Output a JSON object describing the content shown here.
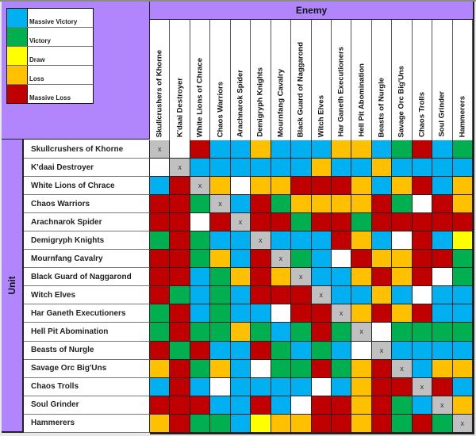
{
  "legend": {
    "items": [
      {
        "key": "B",
        "label": "Massive Victory",
        "color": "#00b0f0"
      },
      {
        "key": "G",
        "label": "Victory",
        "color": "#00b050"
      },
      {
        "key": "Y",
        "label": "Draw",
        "color": "#ffff00"
      },
      {
        "key": "O",
        "label": "Loss",
        "color": "#ffc000"
      },
      {
        "key": "R",
        "label": "Massive Loss",
        "color": "#c00000"
      }
    ],
    "self_color": "#c0c0c0",
    "empty_color": "#ffffff",
    "self_mark": "x"
  },
  "header": {
    "enemy_label": "Enemy",
    "unit_label": "Unit"
  },
  "columns": [
    "Skullcrushers of Khorne",
    "K'daai Destroyer",
    "White Lions of Chrace",
    "Chaos Warriors",
    "Arachnarok Spider",
    "Demigryph Knights",
    "Mournfang Cavalry",
    "Black Guard of Naggarond",
    "Witch Elves",
    "Har Ganeth Executioners",
    "Hell Pit Abomination",
    "Beasts of Nurgle",
    "Savage Orc Big'Uns",
    "Chaos Trolls",
    "Soul Grinder",
    "Hammerers"
  ],
  "rows": [
    {
      "label": "Skullcrushers of Khorne",
      "cells": [
        "X",
        "W",
        "R",
        "B",
        "B",
        "O",
        "B",
        "B",
        "B",
        "O",
        "O",
        "B",
        "G",
        "R",
        "B",
        "G"
      ]
    },
    {
      "label": "K'daai Destroyer",
      "cells": [
        "W",
        "X",
        "B",
        "B",
        "B",
        "B",
        "B",
        "B",
        "O",
        "B",
        "B",
        "O",
        "B",
        "B",
        "B",
        "B"
      ]
    },
    {
      "label": "White Lions of Chrace",
      "cells": [
        "B",
        "R",
        "X",
        "O",
        "W",
        "O",
        "O",
        "R",
        "R",
        "R",
        "O",
        "B",
        "O",
        "R",
        "B",
        "O"
      ]
    },
    {
      "label": "Chaos Warriors",
      "cells": [
        "R",
        "R",
        "G",
        "X",
        "B",
        "R",
        "G",
        "O",
        "O",
        "O",
        "O",
        "R",
        "G",
        "W",
        "R",
        "O"
      ]
    },
    {
      "label": "Arachnarok Spider",
      "cells": [
        "R",
        "R",
        "W",
        "R",
        "X",
        "R",
        "R",
        "G",
        "R",
        "R",
        "G",
        "R",
        "R",
        "R",
        "R",
        "R"
      ]
    },
    {
      "label": "Demigryph Knights",
      "cells": [
        "G",
        "R",
        "G",
        "B",
        "B",
        "X",
        "B",
        "B",
        "B",
        "R",
        "O",
        "B",
        "W",
        "R",
        "B",
        "Y"
      ]
    },
    {
      "label": "Mournfang Cavalry",
      "cells": [
        "R",
        "R",
        "G",
        "O",
        "B",
        "R",
        "X",
        "G",
        "B",
        "W",
        "R",
        "O",
        "O",
        "R",
        "R",
        "G"
      ]
    },
    {
      "label": "Black Guard of Naggarond",
      "cells": [
        "R",
        "R",
        "B",
        "G",
        "O",
        "R",
        "O",
        "X",
        "B",
        "B",
        "O",
        "R",
        "O",
        "R",
        "W",
        "G"
      ]
    },
    {
      "label": "Witch Elves",
      "cells": [
        "R",
        "G",
        "B",
        "G",
        "B",
        "R",
        "R",
        "R",
        "X",
        "B",
        "B",
        "O",
        "B",
        "W",
        "B",
        "B"
      ]
    },
    {
      "label": "Har Ganeth Executioners",
      "cells": [
        "G",
        "R",
        "B",
        "G",
        "B",
        "B",
        "W",
        "R",
        "R",
        "X",
        "O",
        "R",
        "O",
        "R",
        "B",
        "B"
      ]
    },
    {
      "label": "Hell Pit Abomination",
      "cells": [
        "G",
        "R",
        "G",
        "G",
        "O",
        "G",
        "B",
        "G",
        "R",
        "G",
        "X",
        "W",
        "G",
        "G",
        "G",
        "G"
      ]
    },
    {
      "label": "Beasts of Nurgle",
      "cells": [
        "R",
        "G",
        "R",
        "B",
        "B",
        "R",
        "G",
        "B",
        "G",
        "B",
        "W",
        "X",
        "B",
        "B",
        "B",
        "B"
      ]
    },
    {
      "label": "Savage Orc Big'Uns",
      "cells": [
        "O",
        "R",
        "G",
        "O",
        "B",
        "W",
        "G",
        "G",
        "R",
        "G",
        "O",
        "R",
        "X",
        "B",
        "O",
        "O"
      ]
    },
    {
      "label": "Chaos Trolls",
      "cells": [
        "B",
        "R",
        "B",
        "W",
        "B",
        "B",
        "B",
        "B",
        "W",
        "B",
        "O",
        "R",
        "R",
        "X",
        "R",
        "B"
      ]
    },
    {
      "label": "Soul Grinder",
      "cells": [
        "R",
        "R",
        "R",
        "B",
        "B",
        "R",
        "B",
        "W",
        "R",
        "R",
        "O",
        "R",
        "G",
        "B",
        "X",
        "O"
      ]
    },
    {
      "label": "Hammerers",
      "cells": [
        "O",
        "R",
        "G",
        "G",
        "B",
        "Y",
        "O",
        "O",
        "R",
        "R",
        "O",
        "R",
        "G",
        "R",
        "G",
        "X"
      ]
    }
  ],
  "chart_data": {
    "type": "heatmap",
    "title": "Unit vs Enemy matchup",
    "xlabel": "Enemy",
    "ylabel": "Unit",
    "legend": [
      "Massive Victory",
      "Victory",
      "Draw",
      "Loss",
      "Massive Loss"
    ],
    "encoding": {
      "B": "Massive Victory",
      "G": "Victory",
      "Y": "Draw",
      "O": "Loss",
      "R": "Massive Loss",
      "W": "No data",
      "X": "Self"
    }
  }
}
